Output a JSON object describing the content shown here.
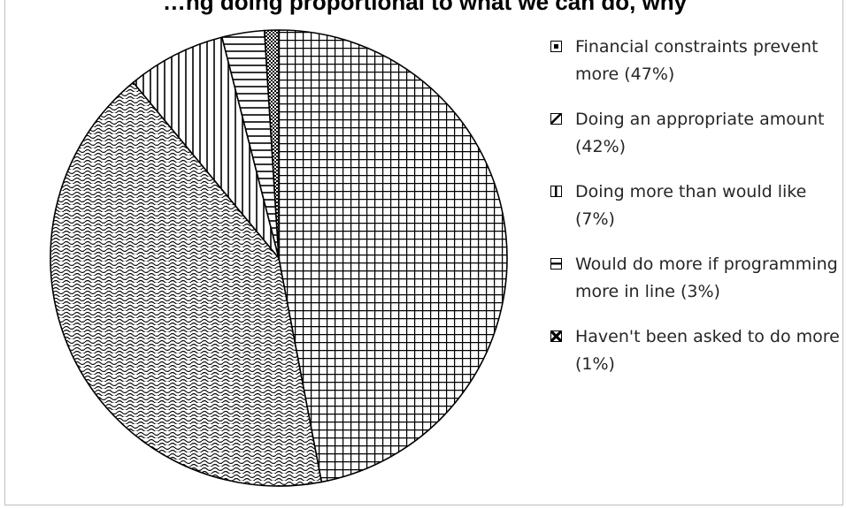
{
  "chart_data": {
    "type": "pie",
    "title": "…ng doing proportional to what we can do, why",
    "categories": [
      "Financial constraints prevent more (47%)",
      "Doing an appropriate amount (42%)",
      "Doing more than would like (7%)",
      "Would do more if programming more in line (3%)",
      "Haven't been asked to do more (1%)"
    ],
    "values": [
      47,
      42,
      7,
      3,
      1
    ],
    "series": [
      {
        "label": "Financial constraints prevent more (47%)",
        "value": 47,
        "pattern": "grid"
      },
      {
        "label": "Doing an appropriate amount (42%)",
        "value": 42,
        "pattern": "wave"
      },
      {
        "label": "Doing more than would like (7%)",
        "value": 7,
        "pattern": "vertical-lines"
      },
      {
        "label": "Would do more if programming more in line (3%)",
        "value": 3,
        "pattern": "horizontal-lines"
      },
      {
        "label": "Haven't been asked to do more (1%)",
        "value": 1,
        "pattern": "dense-check"
      }
    ],
    "legend_position": "right",
    "grid": false
  }
}
